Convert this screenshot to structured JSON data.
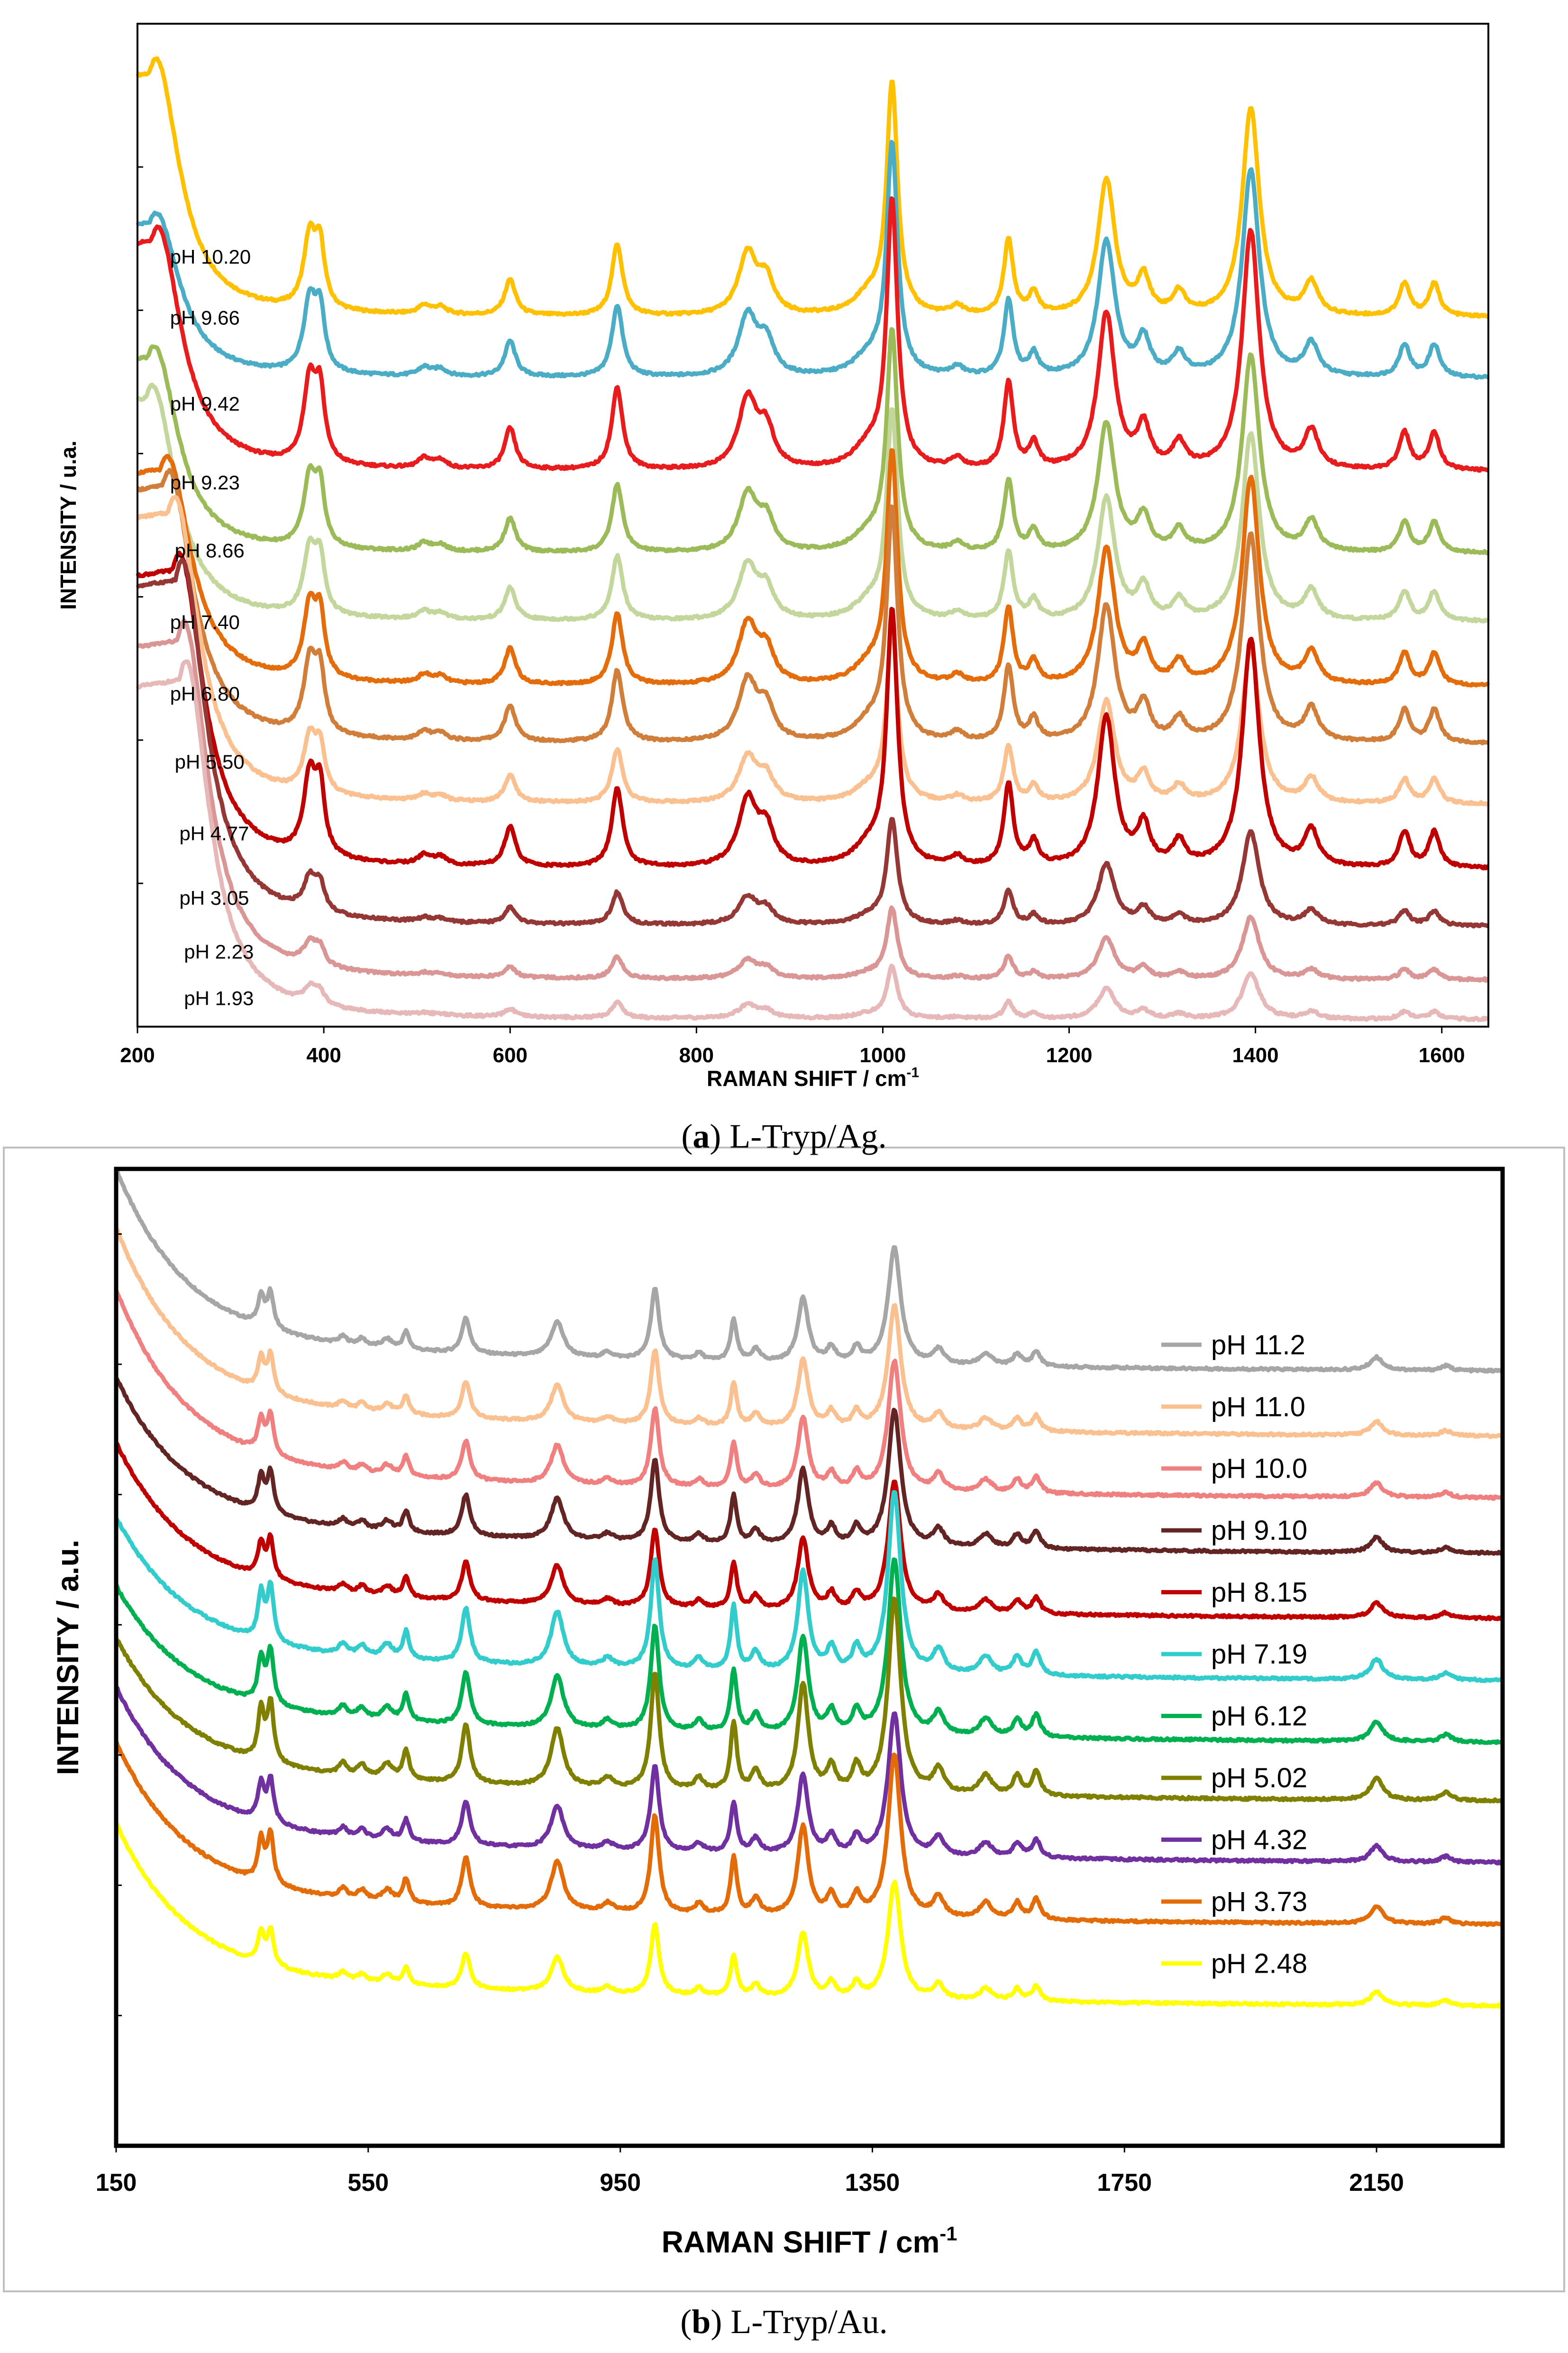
{
  "chart_data": [
    {
      "type": "line",
      "title": "",
      "caption_letter": "a",
      "caption_text": " L-Tryp/Ag.",
      "xlabel": "RAMAN SHIFT /  cm",
      "xlabel_sup": "-1",
      "ylabel": "INTENSITY / u.a.",
      "xlim": [
        200,
        1650
      ],
      "ylim": [
        0,
        14
      ],
      "xticks": [
        200,
        400,
        600,
        800,
        1000,
        1200,
        1400,
        1600
      ],
      "ytick_marks": [
        2,
        4,
        6,
        8,
        10,
        12
      ],
      "background_peak_x": 240,
      "peaks": [
        {
          "x": 385,
          "h": 1.0,
          "w": 8
        },
        {
          "x": 396,
          "h": 0.8,
          "w": 6
        },
        {
          "x": 508,
          "h": 0.12,
          "w": 8
        },
        {
          "x": 525,
          "h": 0.1,
          "w": 8
        },
        {
          "x": 600,
          "h": 0.5,
          "w": 7
        },
        {
          "x": 715,
          "h": 1.0,
          "w": 7
        },
        {
          "x": 855,
          "h": 0.85,
          "w": 12
        },
        {
          "x": 875,
          "h": 0.45,
          "w": 10
        },
        {
          "x": 985,
          "h": 0.25,
          "w": 20
        },
        {
          "x": 1010,
          "h": 3.2,
          "w": 7
        },
        {
          "x": 1080,
          "h": 0.12,
          "w": 8
        },
        {
          "x": 1135,
          "h": 1.05,
          "w": 6
        },
        {
          "x": 1162,
          "h": 0.3,
          "w": 6
        },
        {
          "x": 1240,
          "h": 1.9,
          "w": 11
        },
        {
          "x": 1280,
          "h": 0.5,
          "w": 8
        },
        {
          "x": 1318,
          "h": 0.3,
          "w": 8
        },
        {
          "x": 1395,
          "h": 2.9,
          "w": 11
        },
        {
          "x": 1460,
          "h": 0.45,
          "w": 9
        },
        {
          "x": 1560,
          "h": 0.45,
          "w": 7
        },
        {
          "x": 1592,
          "h": 0.45,
          "w": 7
        }
      ],
      "series": [
        {
          "name": "pH 10.20",
          "label": "pH 10.20",
          "color": "#FFC000",
          "offset": 9.9,
          "scale": 1.0,
          "bg": 3.6,
          "bgx": 220,
          "label_x": 235,
          "label_y": 10.65
        },
        {
          "name": "pH 9.66",
          "label": "pH 9.66",
          "color": "#4BACC6",
          "offset": 9.05,
          "scale": 1.0,
          "bg": 2.3,
          "bgx": 220,
          "label_x": 235,
          "label_y": 9.8
        },
        {
          "name": "pH 9.42",
          "label": "pH 9.42",
          "color": "#E81C1C",
          "offset": 7.75,
          "scale": 1.15,
          "bg": 3.4,
          "bgx": 222,
          "label_x": 235,
          "label_y": 8.6
        },
        {
          "name": "pH 9.23",
          "label": "pH 9.23",
          "color": "#9BBB59",
          "offset": 6.6,
          "scale": 0.95,
          "bg": 2.9,
          "bgx": 218,
          "label_x": 235,
          "label_y": 7.5
        },
        {
          "name": "pH 8.66",
          "label": "pH 8.66",
          "color": "#C3D69B",
          "offset": 5.65,
          "scale": 0.9,
          "bg": 3.3,
          "bgx": 216,
          "label_x": 240,
          "label_y": 6.55
        },
        {
          "name": "pH 7.40",
          "label": "pH 7.40",
          "color": "#E46C0A",
          "offset": 4.75,
          "scale": 1.0,
          "bg": 3.2,
          "bgx": 232,
          "label_x": 235,
          "label_y": 5.55
        },
        {
          "name": "pH 6.80",
          "label": "pH 6.80",
          "color": "#D07E3A",
          "offset": 3.95,
          "scale": 1.0,
          "bg": 3.8,
          "bgx": 234,
          "label_x": 235,
          "label_y": 4.55
        },
        {
          "name": "pH 5.50",
          "label": "pH 5.50",
          "color": "#FAC090",
          "offset": 3.1,
          "scale": 0.75,
          "bg": 4.3,
          "bgx": 240,
          "label_x": 240,
          "label_y": 3.6
        },
        {
          "name": "pH 4.77",
          "label": "pH 4.77",
          "color": "#C00000",
          "offset": 2.2,
          "scale": 1.1,
          "bg": 4.4,
          "bgx": 245,
          "label_x": 245,
          "label_y": 2.6
        },
        {
          "name": "pH 3.05",
          "label": "pH 3.05",
          "color": "#953735",
          "offset": 1.4,
          "scale": 0.45,
          "bg": 5.1,
          "bgx": 248,
          "label_x": 245,
          "label_y": 1.7
        },
        {
          "name": "pH 2.23",
          "label": "pH 2.23",
          "color": "#D99694",
          "offset": 0.65,
          "scale": 0.3,
          "bg": 5.0,
          "bgx": 250,
          "label_x": 250,
          "label_y": 0.95
        },
        {
          "name": "pH 1.93",
          "label": "pH 1.93",
          "color": "#E6B9B8",
          "offset": 0.1,
          "scale": 0.22,
          "bg": 5.0,
          "bgx": 252,
          "label_x": 250,
          "label_y": 0.3
        }
      ]
    },
    {
      "type": "line",
      "title": "",
      "caption_letter": "b",
      "caption_text": " L-Tryp/Au.",
      "xlabel": "RAMAN SHIFT / cm",
      "xlabel_sup": "-1",
      "ylabel": "INTENSITY / a.u.",
      "xlim": [
        150,
        2350
      ],
      "ylim": [
        0,
        15
      ],
      "xticks": [
        150,
        550,
        950,
        1350,
        1750,
        2150
      ],
      "ytick_marks": [
        2,
        4,
        6,
        8,
        10,
        12,
        14
      ],
      "legend_position": "right",
      "peaks": [
        {
          "x": 380,
          "h": 0.5,
          "w": 6
        },
        {
          "x": 395,
          "h": 0.6,
          "w": 6
        },
        {
          "x": 510,
          "h": 0.12,
          "w": 8
        },
        {
          "x": 540,
          "h": 0.12,
          "w": 8
        },
        {
          "x": 580,
          "h": 0.15,
          "w": 10
        },
        {
          "x": 610,
          "h": 0.3,
          "w": 6
        },
        {
          "x": 705,
          "h": 0.6,
          "w": 8
        },
        {
          "x": 850,
          "h": 0.6,
          "w": 12
        },
        {
          "x": 930,
          "h": 0.1,
          "w": 10
        },
        {
          "x": 1005,
          "h": 1.2,
          "w": 8
        },
        {
          "x": 1075,
          "h": 0.12,
          "w": 8
        },
        {
          "x": 1130,
          "h": 0.7,
          "w": 6
        },
        {
          "x": 1165,
          "h": 0.2,
          "w": 8
        },
        {
          "x": 1240,
          "h": 1.1,
          "w": 10
        },
        {
          "x": 1285,
          "h": 0.25,
          "w": 8
        },
        {
          "x": 1325,
          "h": 0.25,
          "w": 8
        },
        {
          "x": 1385,
          "h": 2.0,
          "w": 12
        },
        {
          "x": 1455,
          "h": 0.25,
          "w": 10
        },
        {
          "x": 1530,
          "h": 0.2,
          "w": 12
        },
        {
          "x": 1580,
          "h": 0.2,
          "w": 8
        },
        {
          "x": 1610,
          "h": 0.25,
          "w": 8
        },
        {
          "x": 2150,
          "h": 0.22,
          "w": 12
        },
        {
          "x": 2260,
          "h": 0.08,
          "w": 10
        }
      ],
      "series": [
        {
          "name": "pH 11.2",
          "label": "pH 11.2",
          "color": "#A6A6A6",
          "offset": 11.85,
          "scale": 0.9,
          "bg": 2.6,
          "legend_y": 12.3
        },
        {
          "name": "pH 11.0",
          "label": "pH 11.0",
          "color": "#FAC090",
          "offset": 10.85,
          "scale": 0.95,
          "bg": 2.7,
          "legend_y": 11.35
        },
        {
          "name": "pH 10.0",
          "label": "pH 10.0",
          "color": "#F08080",
          "offset": 9.9,
          "scale": 1.0,
          "bg": 2.7,
          "legend_y": 10.4
        },
        {
          "name": "pH 9.10",
          "label": "pH 9.10",
          "color": "#632523",
          "offset": 9.05,
          "scale": 1.05,
          "bg": 2.2,
          "legend_y": 9.45
        },
        {
          "name": "pH 8.15",
          "label": "pH 8.15",
          "color": "#C00000",
          "offset": 8.05,
          "scale": 1.0,
          "bg": 2.2,
          "legend_y": 8.5
        },
        {
          "name": "pH 7.19",
          "label": "pH 7.19",
          "color": "#33CCCC",
          "offset": 7.1,
          "scale": 1.4,
          "bg": 2.0,
          "legend_y": 7.55
        },
        {
          "name": "pH 6.12",
          "label": "pH 6.12",
          "color": "#00B050",
          "offset": 6.15,
          "scale": 1.35,
          "bg": 1.9,
          "legend_y": 6.6
        },
        {
          "name": "pH 5.02",
          "label": "pH 5.02",
          "color": "#7F7F00",
          "offset": 5.25,
          "scale": 1.5,
          "bg": 2.0,
          "legend_y": 5.65
        },
        {
          "name": "pH 4.32",
          "label": "pH 4.32",
          "color": "#7030A0",
          "offset": 4.3,
          "scale": 1.1,
          "bg": 2.2,
          "legend_y": 4.7
        },
        {
          "name": "pH 3.73",
          "label": "pH 3.73",
          "color": "#E36C09",
          "offset": 3.35,
          "scale": 1.25,
          "bg": 2.3,
          "legend_y": 3.75
        },
        {
          "name": "pH 2.48",
          "label": "pH 2.48",
          "color": "#FFFF00",
          "offset": 2.1,
          "scale": 0.9,
          "bg": 2.3,
          "legend_y": 2.8
        }
      ]
    }
  ]
}
